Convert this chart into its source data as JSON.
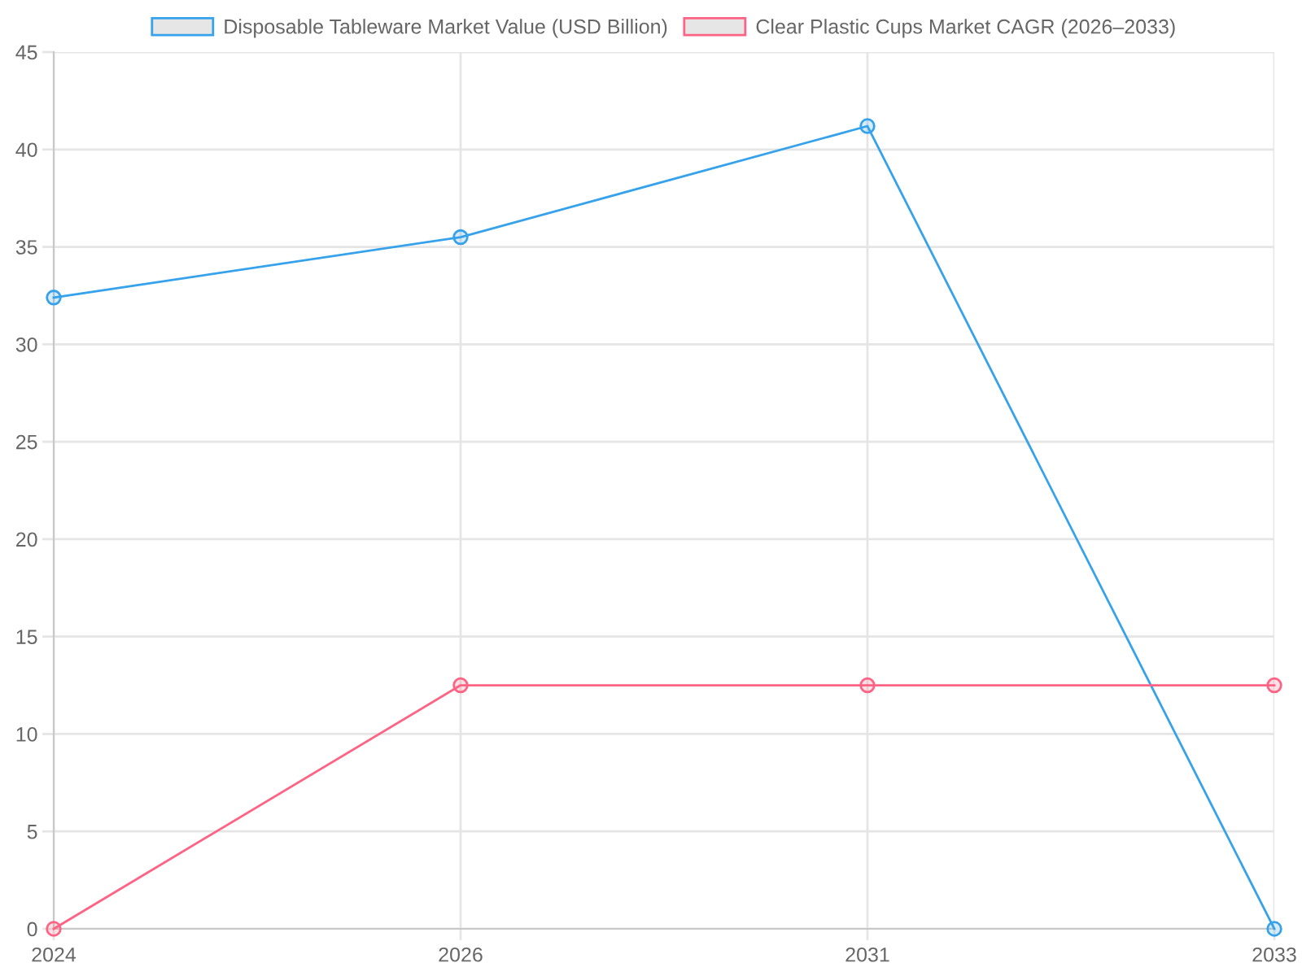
{
  "chart_data": {
    "type": "line",
    "categories": [
      "2024",
      "2026",
      "2031",
      "2033"
    ],
    "series": [
      {
        "name": "Disposable Tableware Market Value (USD Billion)",
        "color": "#36a2eb",
        "values": [
          32.4,
          35.5,
          41.2,
          0
        ]
      },
      {
        "name": "Clear Plastic Cups Market CAGR (2026–2033)",
        "color": "#ff6384",
        "values": [
          0,
          12.5,
          12.5,
          12.5
        ]
      }
    ],
    "ylim": [
      0,
      45
    ],
    "yticks": [
      0,
      5,
      10,
      15,
      20,
      25,
      30,
      35,
      40,
      45
    ],
    "grid": true,
    "legend": "top",
    "marker": "circle",
    "line_style": "solid"
  }
}
